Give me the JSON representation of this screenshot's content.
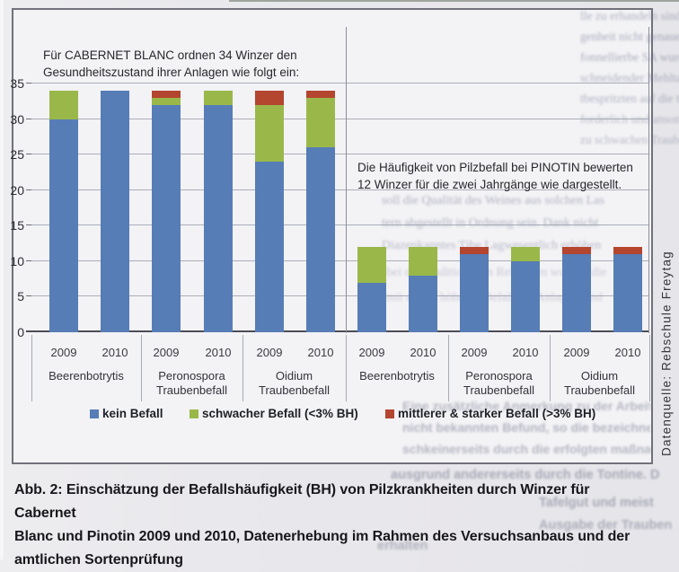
{
  "page": {
    "background": "#e9e8ec"
  },
  "figure": {
    "annotation_cabernet": {
      "line1": "Für CABERNET BLANC ordnen 34 Winzer den",
      "line2": "Gesundheitszustand ihrer Anlagen wie folgt ein:"
    },
    "annotation_pinotin": {
      "line1": "Die Häufigkeit von Pilzbefall bei PINOTIN bewerten",
      "line2": "12 Winzer für die zwei Jahrgänge wie dargestellt."
    },
    "source_note": "Datenquelle: Rebschule Freytag"
  },
  "caption": {
    "line1": "Abb. 2: Einschätzung der Befallshäufigkeit (BH) von Pilzkrankheiten durch Winzer für Cabernet",
    "line2": "Blanc und Pinotin 2009 und 2010, Datenerhebung im Rahmen des Versuchsanbaus und der",
    "line3": "amtlichen Sortenprüfung"
  },
  "chart_data": {
    "type": "stacked_bar",
    "ylim": [
      0,
      35
    ],
    "yticks": [
      0,
      5,
      10,
      15,
      20,
      25,
      30,
      35
    ],
    "grid": true,
    "legend_position": "bottom",
    "panels": [
      {
        "name": "Cabernet Blanc",
        "respondents": 34
      },
      {
        "name": "Pinotin",
        "respondents": 12
      }
    ],
    "x": [
      "2009",
      "2010",
      "2009",
      "2010",
      "2009",
      "2010",
      "2009",
      "2010",
      "2009",
      "2010",
      "2009",
      "2010"
    ],
    "categories": [
      {
        "panel": "Cabernet Blanc",
        "lines": [
          "Beerenbotrytis"
        ]
      },
      {
        "panel": "Cabernet Blanc",
        "lines": [
          "Peronospora",
          "Traubenbefall"
        ]
      },
      {
        "panel": "Cabernet Blanc",
        "lines": [
          "Oidium",
          "Traubenbefall"
        ]
      },
      {
        "panel": "Pinotin",
        "lines": [
          "Beerenbotrytis"
        ]
      },
      {
        "panel": "Pinotin",
        "lines": [
          "Peronospora",
          "Traubenbefall"
        ]
      },
      {
        "panel": "Pinotin",
        "lines": [
          "Oidium",
          "Traubenbefall"
        ]
      }
    ],
    "series": [
      {
        "name": "kein Befall",
        "color": "#567db6",
        "values": [
          30,
          34,
          32,
          32,
          24,
          26,
          7,
          8,
          11,
          10,
          11,
          11
        ]
      },
      {
        "name": "schwacher Befall (<3% BH)",
        "color": "#9ab84a",
        "values": [
          4,
          0,
          1,
          2,
          8,
          7,
          5,
          4,
          0,
          2,
          0,
          0
        ]
      },
      {
        "name": "mittlerer & starker Befall (>3% BH)",
        "color": "#b4452e",
        "values": [
          0,
          0,
          1,
          0,
          2,
          1,
          0,
          0,
          1,
          0,
          1,
          1
        ]
      }
    ]
  },
  "ghost_text": {
    "fragments": [
      "lle zu erhandeln sind, b",
      "genheit nicht genauer werden. Von Saarzeit",
      "fonnellierbe SA wurde jetzt ein Besonder-",
      "schneidender Mehltau auf den Anlagen zu",
      "tbespritzten auf die trockenen Standorten",
      "forderlich und ansonsten als Zierpflanzen",
      "zu schwachen Traubenbefall eine mögliche",
      "soll die Qualität des Weines aus solchen Las",
      "tern abgestellt in Ordnung sein. Dank nicht",
      "Diazenkanntes Tibe Lagwesentlich erhöhen",
      "bei den traditionellen Rebsorten wurden die",
      "mit einem höheren Befall der Anlagen sind",
      "Eine zusätzliche Anmerkung zu der Arbeit in",
      "nicht bekannten Befund, so die bezeichneten",
      "schkeinerseits durch die erfolgten maßnahmen",
      "ausgrund andererseits durch die Tontine. Die",
      "Tafelgut und meist",
      "Ausgabe der Trauben",
      "erhalten"
    ]
  }
}
